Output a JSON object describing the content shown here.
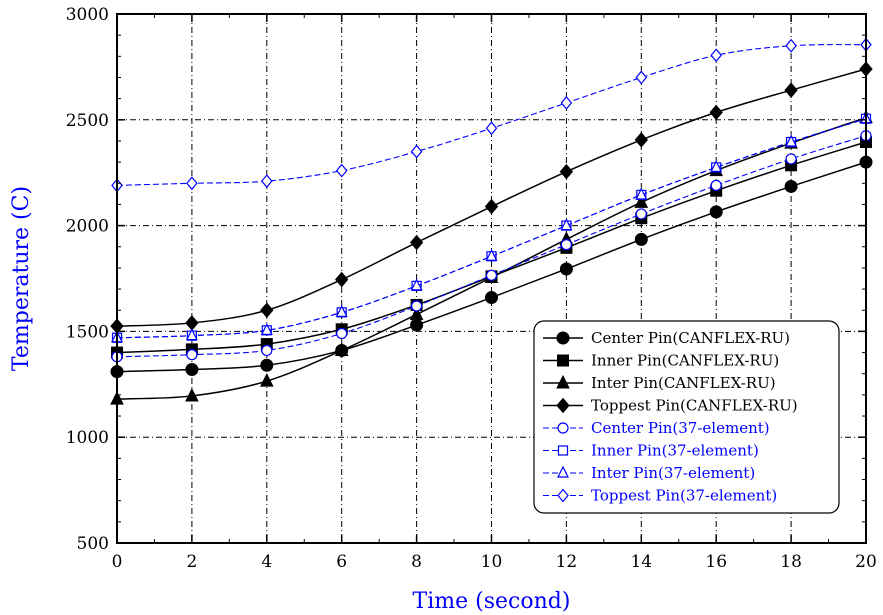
{
  "chart_data": {
    "type": "line",
    "xlabel": "Time (second)",
    "ylabel": "Temperature (C)",
    "xlim": [
      0,
      20
    ],
    "ylim": [
      500,
      3000
    ],
    "x_ticks": [
      "0",
      "2",
      "4",
      "6",
      "8",
      "10",
      "12",
      "14",
      "16",
      "18",
      "20"
    ],
    "y_ticks": [
      "500",
      "1000",
      "1500",
      "2000",
      "2500",
      "3000"
    ],
    "grid": true,
    "legend_position": "center-right",
    "label_color": "#0000ff",
    "x": [
      0,
      2,
      4,
      6,
      8,
      10,
      12,
      14,
      16,
      18,
      20
    ],
    "series": [
      {
        "name": "Center Pin(CANFLEX-RU)",
        "color": "#000000",
        "marker": "circle-filled",
        "dashed": false,
        "values": [
          1310,
          1320,
          1340,
          1410,
          1530,
          1660,
          1795,
          1935,
          2065,
          2185,
          2300
        ]
      },
      {
        "name": "Inner Pin(CANFLEX-RU)",
        "color": "#000000",
        "marker": "square-filled",
        "dashed": false,
        "values": [
          1400,
          1415,
          1440,
          1510,
          1625,
          1760,
          1895,
          2035,
          2165,
          2285,
          2395
        ]
      },
      {
        "name": "Inter Pin(CANFLEX-RU)",
        "color": "#000000",
        "marker": "triangle-filled",
        "dashed": false,
        "values": [
          1180,
          1195,
          1265,
          1410,
          1580,
          1755,
          1935,
          2110,
          2260,
          2390,
          2510
        ]
      },
      {
        "name": "Toppest Pin(CANFLEX-RU)",
        "color": "#000000",
        "marker": "diamond-filled",
        "dashed": false,
        "values": [
          1525,
          1540,
          1600,
          1745,
          1920,
          2090,
          2255,
          2405,
          2535,
          2640,
          2740
        ]
      },
      {
        "name": "Center Pin(37-element)",
        "color": "#0000ff",
        "marker": "circle-open",
        "dashed": true,
        "values": [
          1380,
          1390,
          1410,
          1490,
          1620,
          1765,
          1910,
          2055,
          2190,
          2315,
          2425
        ]
      },
      {
        "name": "Inner Pin(37-element)",
        "color": "#0000ff",
        "marker": "square-open",
        "dashed": true,
        "values": [
          1470,
          1480,
          1505,
          1590,
          1715,
          1855,
          2000,
          2145,
          2275,
          2395,
          2505
        ]
      },
      {
        "name": "Inter Pin(37-element)",
        "color": "#0000ff",
        "marker": "triangle-open",
        "dashed": true,
        "values": [
          1470,
          1480,
          1505,
          1590,
          1715,
          1855,
          2000,
          2145,
          2275,
          2395,
          2505
        ]
      },
      {
        "name": "Toppest Pin(37-element)",
        "color": "#0000ff",
        "marker": "diamond-open",
        "dashed": true,
        "values": [
          2190,
          2200,
          2210,
          2260,
          2350,
          2460,
          2580,
          2700,
          2805,
          2850,
          2855
        ]
      }
    ]
  }
}
